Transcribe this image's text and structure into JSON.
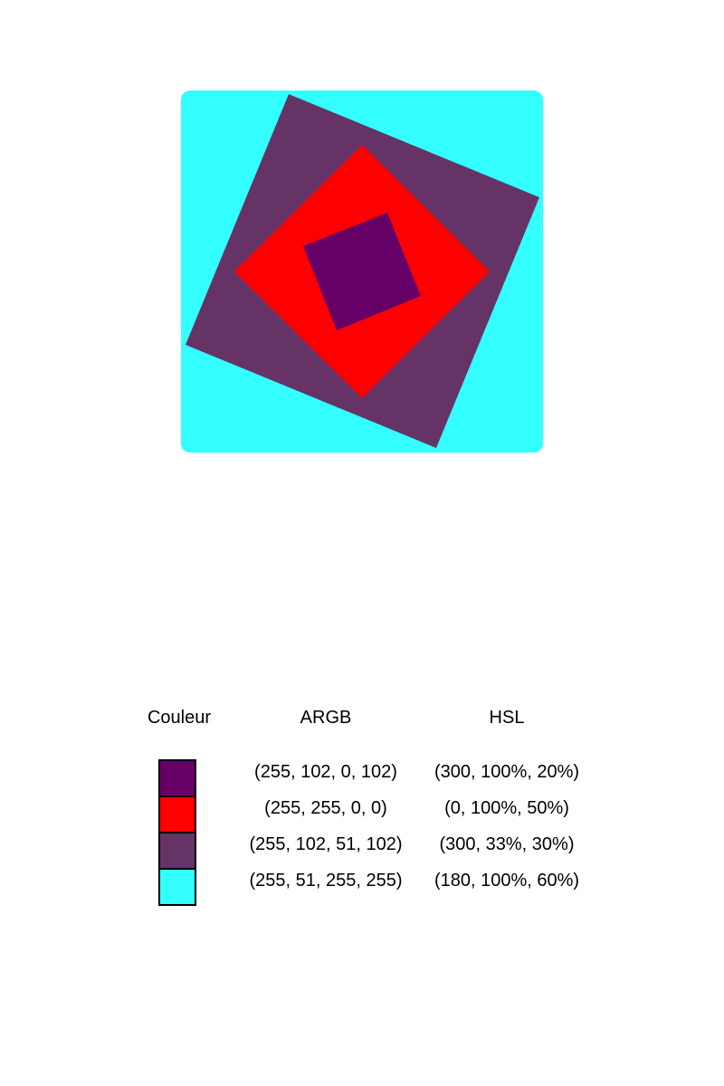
{
  "figure": {
    "background": "#33ffff",
    "outer_square": "#663366",
    "middle_square": "#ff0000",
    "inner_square": "#660066"
  },
  "legend": {
    "headers": {
      "color": "Couleur",
      "argb": "ARGB",
      "hsl": "HSL"
    },
    "rows": [
      {
        "swatch": "#660066",
        "argb": "(255, 102, 0, 102)",
        "hsl": "(300, 100%, 20%)"
      },
      {
        "swatch": "#ff0000",
        "argb": "(255, 255, 0, 0)",
        "hsl": "(0, 100%, 50%)"
      },
      {
        "swatch": "#663366",
        "argb": "(255, 102, 51, 102)",
        "hsl": "(300, 33%, 30%)"
      },
      {
        "swatch": "#33ffff",
        "argb": "(255, 51, 255, 255)",
        "hsl": "(180, 100%, 60%)"
      }
    ]
  }
}
